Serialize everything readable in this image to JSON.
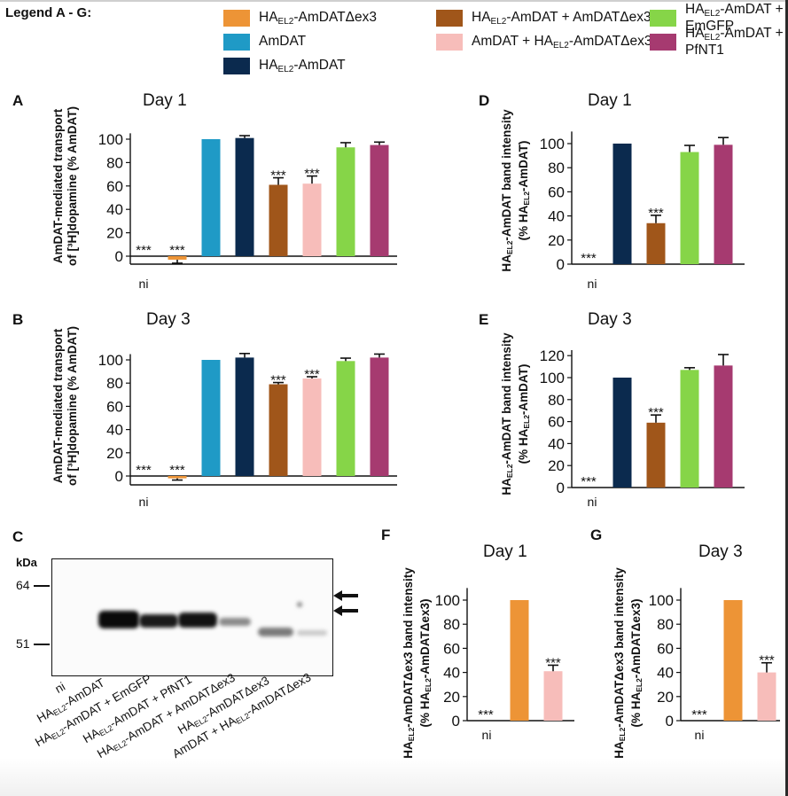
{
  "legend": {
    "title": "Legend A - G:",
    "items": [
      {
        "pre": "HA",
        "sub": "EL2",
        "post": "-AmDATΔex3",
        "color": "#ED9436"
      },
      {
        "pre": "",
        "sub": "",
        "post": "AmDAT",
        "color": "#1F9AC6"
      },
      {
        "pre": "HA",
        "sub": "EL2",
        "post": "-AmDAT",
        "color": "#0B2A4E"
      },
      {
        "pre": "HA",
        "sub": "EL2",
        "post": "-AmDAT + AmDATΔex3",
        "color": "#A0561A"
      },
      {
        "pre": "",
        "sub": "",
        "post": "AmDAT + HA",
        "sub2": "EL2",
        "post2": "-AmDATΔex3",
        "color": "#F7BDBA"
      },
      {
        "pre": "HA",
        "sub": "EL2",
        "post": "-AmDAT + EmGFP",
        "color": "#86D548"
      },
      {
        "pre": "HA",
        "sub": "EL2",
        "post": "-AmDAT + PfNT1",
        "color": "#A63A70"
      }
    ]
  },
  "significance_marker": "***",
  "ni_label": "ni",
  "chart_data": [
    {
      "id": "A",
      "type": "bar",
      "title": "Day 1",
      "ylabel_line1": "AmDAT-mediated transport",
      "ylabel_line2": "of [³H]dopamine (% AmDAT)",
      "ylim": [
        -5,
        105
      ],
      "yticks": [
        0,
        20,
        40,
        60,
        80,
        100
      ],
      "categories": [
        "ni",
        "HAEL2-AmDATΔex3",
        "AmDAT",
        "HAEL2-AmDAT",
        "HAEL2-AmDAT + AmDATΔex3",
        "AmDAT + HAEL2-AmDATΔex3",
        "HAEL2-AmDAT + EmGFP",
        "HAEL2-AmDAT + PfNT1"
      ],
      "values": [
        0,
        -3,
        100,
        101,
        61,
        62,
        93,
        95
      ],
      "errors": [
        0,
        3,
        0,
        2,
        6,
        6.5,
        4,
        2.5
      ],
      "colors": [
        "#000000",
        "#ED9436",
        "#1F9AC6",
        "#0B2A4E",
        "#A0561A",
        "#F7BDBA",
        "#86D548",
        "#A63A70"
      ],
      "significant": [
        true,
        true,
        false,
        false,
        true,
        true,
        false,
        false
      ]
    },
    {
      "id": "B",
      "type": "bar",
      "title": "Day 3",
      "ylabel_line1": "AmDAT-mediated transport",
      "ylabel_line2": "of [³H]dopamine (% AmDAT)",
      "ylim": [
        -5,
        105
      ],
      "yticks": [
        0,
        20,
        40,
        60,
        80,
        100
      ],
      "categories": [
        "ni",
        "HAEL2-AmDATΔex3",
        "AmDAT",
        "HAEL2-AmDAT",
        "HAEL2-AmDAT + AmDATΔex3",
        "AmDAT + HAEL2-AmDATΔex3",
        "HAEL2-AmDAT + EmGFP",
        "HAEL2-AmDAT + PfNT1"
      ],
      "values": [
        0,
        -2,
        100,
        102,
        79,
        84,
        99,
        102
      ],
      "errors": [
        0,
        1.5,
        0,
        3.5,
        1.5,
        1.5,
        2.5,
        3
      ],
      "colors": [
        "#000000",
        "#ED9436",
        "#1F9AC6",
        "#0B2A4E",
        "#A0561A",
        "#F7BDBA",
        "#86D548",
        "#A63A70"
      ],
      "significant": [
        true,
        true,
        false,
        false,
        true,
        true,
        false,
        false
      ]
    },
    {
      "id": "D",
      "type": "bar",
      "title": "Day 1",
      "ylabel_line1": "HAEL2-AmDAT band intensity",
      "ylabel_line2": "(% HAEL2-AmDAT)",
      "ylim": [
        0,
        110
      ],
      "yticks": [
        0,
        20,
        40,
        60,
        80,
        100
      ],
      "categories": [
        "ni",
        "HAEL2-AmDAT",
        "HAEL2-AmDAT + AmDATΔex3",
        "HAEL2-AmDAT + EmGFP",
        "HAEL2-AmDAT + PfNT1"
      ],
      "values": [
        0,
        100,
        34,
        93,
        99
      ],
      "errors": [
        0,
        0,
        6.5,
        5.5,
        6
      ],
      "colors": [
        "#000000",
        "#0B2A4E",
        "#A0561A",
        "#86D548",
        "#A63A70"
      ],
      "significant": [
        true,
        false,
        true,
        false,
        false
      ]
    },
    {
      "id": "E",
      "type": "bar",
      "title": "Day 3",
      "ylabel_line1": "HAEL2-AmDAT band intensity",
      "ylabel_line2": "(% HAEL2-AmDAT)",
      "ylim": [
        0,
        125
      ],
      "yticks": [
        0,
        20,
        40,
        60,
        80,
        100,
        120
      ],
      "categories": [
        "ni",
        "HAEL2-AmDAT",
        "HAEL2-AmDAT + AmDATΔex3",
        "HAEL2-AmDAT + EmGFP",
        "HAEL2-AmDAT + PfNT1"
      ],
      "values": [
        0,
        100,
        59,
        107,
        111
      ],
      "errors": [
        0,
        0,
        7,
        2,
        10
      ],
      "colors": [
        "#000000",
        "#0B2A4E",
        "#A0561A",
        "#86D548",
        "#A63A70"
      ],
      "significant": [
        true,
        false,
        true,
        false,
        false
      ]
    },
    {
      "id": "F",
      "type": "bar",
      "title": "Day 1",
      "ylabel_line1": "HAEL2-AmDATΔex3 band intensity",
      "ylabel_line2": "(% HAEL2-AmDATΔex3)",
      "ylim": [
        0,
        110
      ],
      "yticks": [
        0,
        20,
        40,
        60,
        80,
        100
      ],
      "categories": [
        "ni",
        "HAEL2-AmDATΔex3",
        "AmDAT + HAEL2-AmDATΔex3"
      ],
      "values": [
        0,
        100,
        41
      ],
      "errors": [
        0,
        0,
        5
      ],
      "colors": [
        "#000000",
        "#ED9436",
        "#F7BDBA"
      ],
      "significant": [
        true,
        false,
        true
      ]
    },
    {
      "id": "G",
      "type": "bar",
      "title": "Day 3",
      "ylabel_line1": "HAEL2-AmDATΔex3 band intensity",
      "ylabel_line2": "(% HAEL2-AmDATΔex3)",
      "ylim": [
        0,
        110
      ],
      "yticks": [
        0,
        20,
        40,
        60,
        80,
        100
      ],
      "categories": [
        "ni",
        "HAEL2-AmDATΔex3",
        "AmDAT + HAEL2-AmDATΔex3"
      ],
      "values": [
        0,
        100,
        40
      ],
      "errors": [
        0,
        0,
        8
      ],
      "colors": [
        "#000000",
        "#ED9436",
        "#F7BDBA"
      ],
      "significant": [
        true,
        false,
        true
      ]
    }
  ],
  "blot": {
    "id": "C",
    "unit": "kDa",
    "markers": [
      "64",
      "51"
    ],
    "lanes": [
      {
        "pre": "ni",
        "sub": "",
        "post": ""
      },
      {
        "pre": "HA",
        "sub": "EL2",
        "post": "-AmDAT"
      },
      {
        "pre": "HA",
        "sub": "EL2",
        "post": "-AmDAT + EmGFP"
      },
      {
        "pre": "HA",
        "sub": "EL2",
        "post": "-AmDAT + PfNT1"
      },
      {
        "pre": "HA",
        "sub": "EL2",
        "post": "-AmDAT + AmDATΔex3"
      },
      {
        "pre": "HA",
        "sub": "EL2",
        "post": "-AmDATΔex3"
      },
      {
        "pre": "AmDAT + HA",
        "sub": "EL2",
        "post": "-AmDATΔex3"
      }
    ]
  }
}
